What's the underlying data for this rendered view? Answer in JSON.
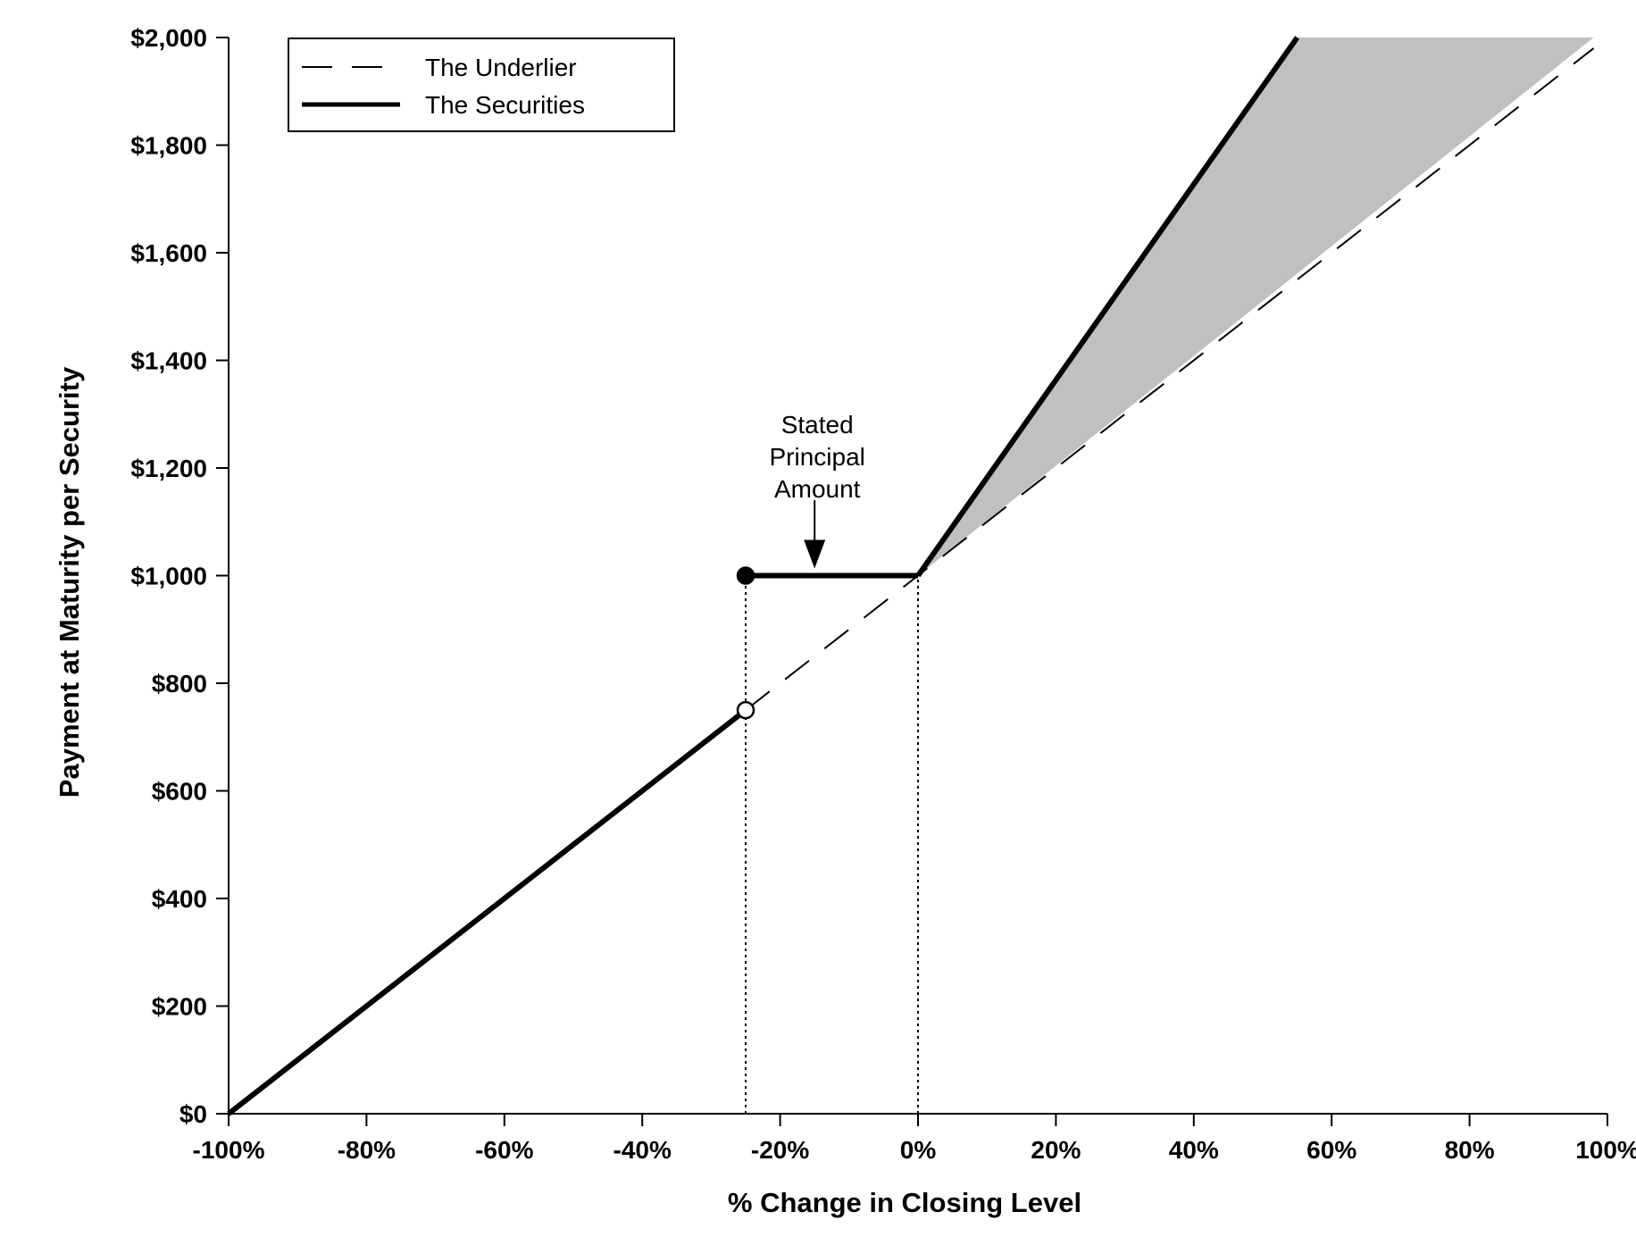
{
  "chart_data": {
    "type": "line",
    "xlabel": "% Change in Closing Level",
    "ylabel": "Payment at Maturity per Security",
    "xlim": [
      -100,
      100
    ],
    "ylim": [
      0,
      2000
    ],
    "x_ticks": [
      -100,
      -80,
      -60,
      -40,
      -20,
      0,
      20,
      40,
      60,
      80,
      100
    ],
    "x_tick_labels": [
      "-100%",
      "-80%",
      "-60%",
      "-40%",
      "-20%",
      "0%",
      "20%",
      "40%",
      "60%",
      "80%",
      "100%"
    ],
    "y_ticks": [
      0,
      200,
      400,
      600,
      800,
      1000,
      1200,
      1400,
      1600,
      1800,
      2000
    ],
    "y_tick_labels": [
      "$0",
      "$200",
      "$400",
      "$600",
      "$800",
      "$1,000",
      "$1,200",
      "$1,400",
      "$1,600",
      "$1,800",
      "$2,000"
    ],
    "grid": false,
    "legend_position": "top-left",
    "series": [
      {
        "name": "The Underlier",
        "style": "dashed",
        "points": [
          [
            -25,
            750
          ],
          [
            0,
            1000
          ],
          [
            98,
            1980
          ]
        ]
      },
      {
        "name": "The Securities",
        "style": "solid",
        "segments": [
          [
            [
              -100,
              0
            ],
            [
              -25,
              750
            ]
          ],
          [
            [
              -25,
              1000
            ],
            [
              0,
              1000
            ]
          ],
          [
            [
              0,
              1000
            ],
            [
              55,
              2000
            ]
          ]
        ]
      }
    ],
    "markers": [
      {
        "x": -25,
        "y": 1000,
        "fill": "filled"
      },
      {
        "x": -25,
        "y": 750,
        "fill": "open"
      }
    ],
    "reference_lines": [
      {
        "x": -25,
        "y_top": 1000
      },
      {
        "x": 0,
        "y_top": 1000
      }
    ],
    "shaded_region": {
      "polygon": [
        [
          0,
          1000
        ],
        [
          55,
          2000
        ],
        [
          98,
          2000
        ],
        [
          0,
          1000
        ]
      ],
      "color": "#c0c0c0"
    },
    "annotations": [
      {
        "lines": [
          "Stated",
          "Principal",
          "Amount"
        ],
        "arrow_to_x": -15,
        "arrow_to_y": 1000
      }
    ]
  }
}
